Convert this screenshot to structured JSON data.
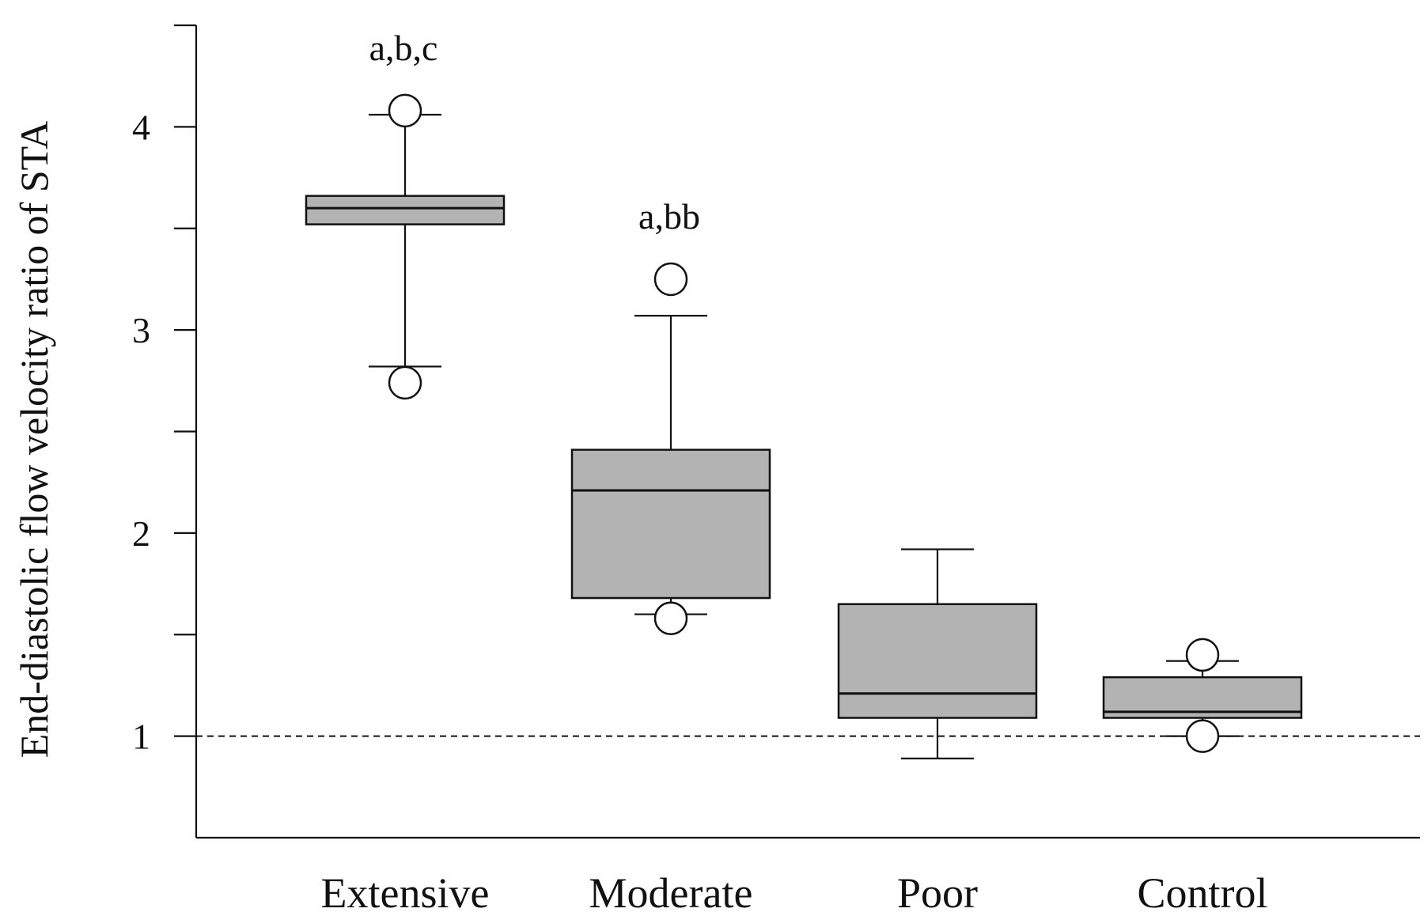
{
  "chart_data": {
    "type": "box",
    "ylabel": "End-diastolic flow velocity ratio of STA",
    "xlabel": "",
    "ylim": [
      0.5,
      4.5
    ],
    "yticks_major": [
      1,
      2,
      3,
      4
    ],
    "yticks_minor": [
      1.5,
      2.5,
      3.5
    ],
    "yticks_major_labels": [
      "1",
      "2",
      "3",
      "4"
    ],
    "reference_line": {
      "y": 1.0,
      "style": "dashed"
    },
    "box_color": "#b3b3b3",
    "categories": [
      "Extensive",
      "Moderate",
      "Poor",
      "Control"
    ],
    "boxes": [
      {
        "category": "Extensive",
        "q1": 3.52,
        "median": 3.6,
        "q3": 3.66,
        "whisker_low": 2.82,
        "whisker_high": 4.06,
        "outliers": [
          4.08,
          2.74
        ],
        "annotation": "a,b,c"
      },
      {
        "category": "Moderate",
        "q1": 1.68,
        "median": 2.21,
        "q3": 2.41,
        "whisker_low": 1.6,
        "whisker_high": 3.07,
        "outliers": [
          3.25,
          1.58
        ],
        "annotation": "a,bb"
      },
      {
        "category": "Poor",
        "q1": 1.09,
        "median": 1.21,
        "q3": 1.65,
        "whisker_low": 0.89,
        "whisker_high": 1.92,
        "outliers": [],
        "annotation": ""
      },
      {
        "category": "Control",
        "q1": 1.09,
        "median": 1.12,
        "q3": 1.29,
        "whisker_low": 1.0,
        "whisker_high": 1.37,
        "outliers": [
          1.4,
          1.0
        ],
        "annotation": ""
      }
    ]
  }
}
